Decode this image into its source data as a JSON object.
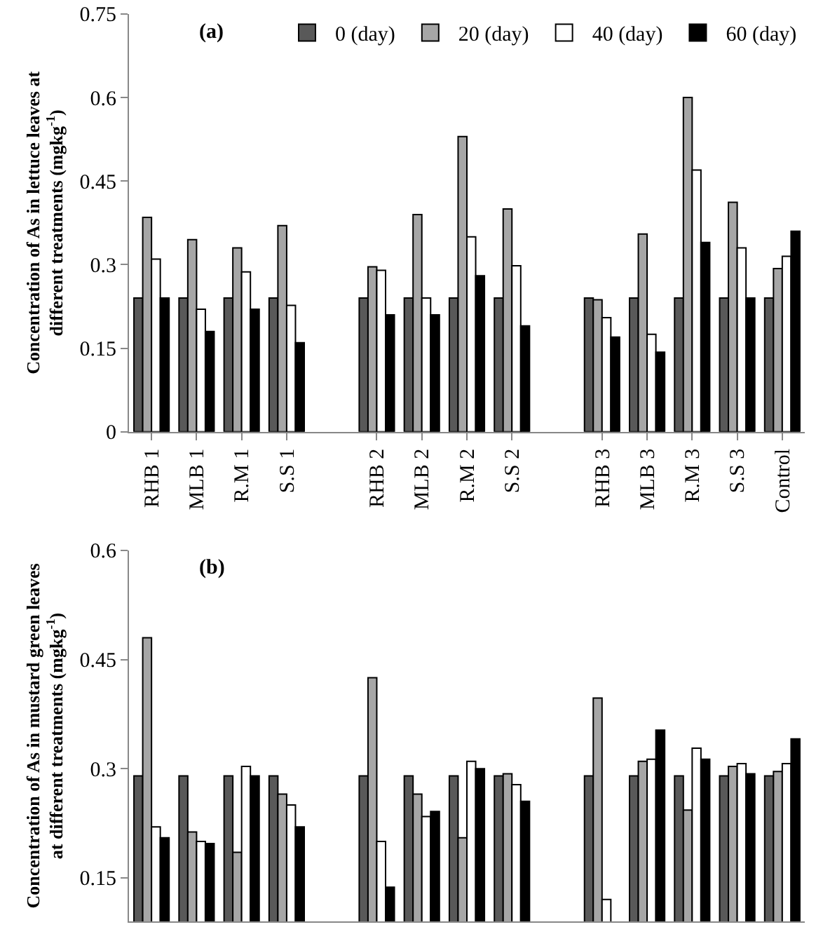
{
  "chart_data": [
    {
      "type": "bar",
      "title": "(a)",
      "ylabel": "Concentration of As in lettuce leaves at different treatments (mgkg$^{-1}$)",
      "categories": [
        "RHB 1",
        "MLB 1",
        "R.M 1",
        "S.S 1",
        null,
        "RHB 2",
        "MLB 2",
        "R.M 2",
        "S.S 2",
        null,
        "RHB 3",
        "MLB 3",
        "R.M 3",
        "S.S 3",
        "Control"
      ],
      "series": [
        {
          "name": "0 (day)",
          "color": "#595959",
          "values": [
            0.24,
            0.24,
            0.24,
            0.24,
            null,
            0.24,
            0.24,
            0.24,
            0.24,
            null,
            0.24,
            0.24,
            0.24,
            0.24,
            0.24
          ]
        },
        {
          "name": "20 (day)",
          "color": "#a6a6a6",
          "values": [
            0.385,
            0.345,
            0.33,
            0.37,
            null,
            0.296,
            0.39,
            0.53,
            0.4,
            null,
            0.237,
            0.355,
            0.6,
            0.412,
            0.293
          ]
        },
        {
          "name": "40 (day)",
          "color": "#ffffff",
          "values": [
            0.31,
            0.22,
            0.287,
            0.227,
            null,
            0.29,
            0.24,
            0.35,
            0.298,
            null,
            0.205,
            0.175,
            0.47,
            0.33,
            0.315
          ]
        },
        {
          "name": "60 (day)",
          "color": "#000000",
          "values": [
            0.24,
            0.18,
            0.22,
            0.16,
            null,
            0.21,
            0.21,
            0.28,
            0.19,
            null,
            0.17,
            0.143,
            0.34,
            0.24,
            0.36
          ]
        }
      ],
      "ylim": [
        0,
        0.75
      ],
      "yticks": [
        0,
        0.15,
        0.3,
        0.45,
        0.6,
        0.75
      ],
      "legend": "top right"
    },
    {
      "type": "bar",
      "title": "(b)",
      "ylabel": "Concentration of As in mustard green leaves at different treatments (mgkg$^{-1}$)",
      "categories": [
        null,
        null,
        null,
        null,
        null,
        null,
        null,
        null,
        null,
        null,
        null,
        null,
        null,
        null,
        null
      ],
      "series": [
        {
          "color": "#595959",
          "values": [
            0.29,
            0.29,
            0.29,
            0.29,
            null,
            0.29,
            0.29,
            0.29,
            0.29,
            null,
            0.29,
            0.29,
            0.29,
            0.29,
            0.29
          ]
        },
        {
          "color": "#a6a6a6",
          "values": [
            0.48,
            0.213,
            0.185,
            0.265,
            null,
            0.425,
            0.265,
            0.205,
            0.293,
            null,
            0.397,
            0.31,
            0.243,
            0.303,
            0.296
          ]
        },
        {
          "color": "#ffffff",
          "values": [
            0.22,
            0.2,
            0.303,
            0.25,
            null,
            0.2,
            0.234,
            0.31,
            0.278,
            null,
            0.12,
            0.313,
            0.328,
            0.307,
            0.307
          ]
        },
        {
          "color": "#000000",
          "values": [
            0.205,
            0.197,
            0.29,
            0.22,
            null,
            0.137,
            0.241,
            0.3,
            0.255,
            null,
            null,
            0.353,
            0.313,
            0.293,
            0.341
          ]
        }
      ],
      "ylim": [
        0.09,
        0.6
      ],
      "yticks": [
        0.15,
        0.3,
        0.45,
        0.6
      ],
      "legend": false,
      "tick_labels": "y"
    }
  ]
}
